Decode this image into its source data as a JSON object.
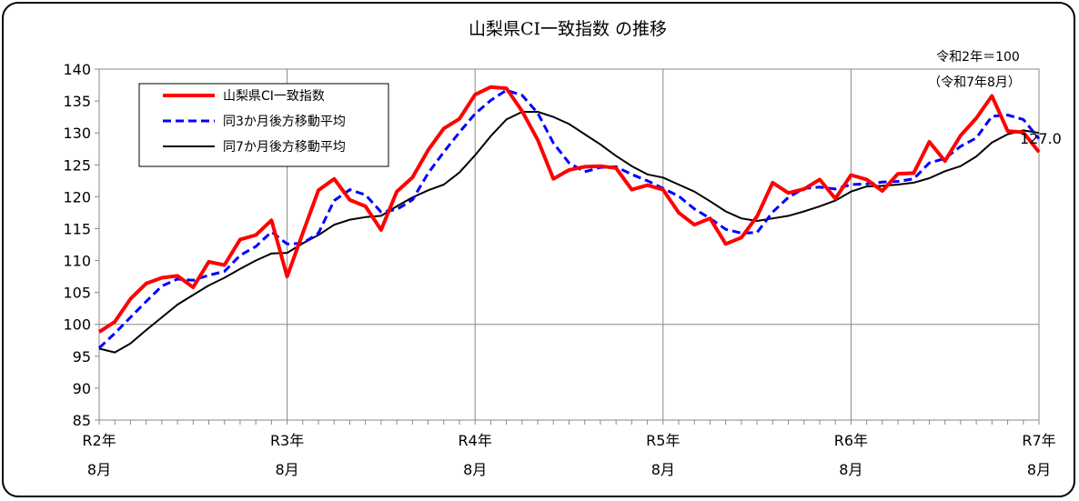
{
  "chart_data": {
    "type": "line",
    "title": "山梨県CI一致指数 の推移",
    "note_line1": "令和2年＝100",
    "note_line2": "（令和7年8月）",
    "last_value_label": "127.0",
    "ylim": [
      85,
      140
    ],
    "yticks": [
      "85",
      "90",
      "95",
      "100",
      "105",
      "110",
      "115",
      "120",
      "125",
      "130",
      "135",
      "140"
    ],
    "x_tick_labels": [
      {
        "line1": "R2年",
        "line2": "8月",
        "month_index": 0
      },
      {
        "line1": "R3年",
        "line2": "8月",
        "month_index": 12
      },
      {
        "line1": "R4年",
        "line2": "8月",
        "month_index": 24
      },
      {
        "line1": "R5年",
        "line2": "8月",
        "month_index": 36
      },
      {
        "line1": "R6年",
        "line2": "8月",
        "month_index": 48
      },
      {
        "line1": "R7年",
        "line2": "8月",
        "month_index": 60
      }
    ],
    "legend": [
      "山梨県CI一致指数",
      "同3か月後方移動平均",
      "同7か月後方移動平均"
    ],
    "series": [
      {
        "name": "山梨県CI一致指数",
        "color": "#ff0000",
        "style": "solid",
        "values": [
          98.8,
          100.4,
          104.0,
          106.4,
          107.3,
          107.6,
          105.8,
          109.8,
          109.3,
          113.3,
          114.0,
          116.3,
          107.5,
          114.3,
          121.0,
          122.8,
          119.5,
          118.5,
          114.8,
          120.8,
          123.0,
          127.3,
          130.7,
          132.2,
          136.0,
          137.2,
          137.0,
          133.4,
          128.9,
          122.8,
          124.2,
          124.7,
          124.8,
          124.5,
          121.1,
          121.8,
          121.1,
          117.5,
          115.6,
          116.6,
          112.6,
          113.6,
          116.9,
          122.2,
          120.6,
          121.2,
          122.7,
          119.7,
          123.4,
          122.7,
          120.9,
          123.6,
          123.7,
          128.6,
          125.6,
          129.6,
          132.3,
          135.8,
          130.3,
          130.1,
          127.0
        ]
      },
      {
        "name": "同3か月後方移動平均",
        "color": "#0000ff",
        "style": "dashed",
        "values": [
          96.3,
          98.6,
          101.1,
          103.6,
          106.0,
          107.1,
          106.9,
          107.7,
          108.3,
          110.8,
          112.2,
          114.5,
          112.6,
          112.7,
          114.3,
          119.4,
          121.1,
          120.3,
          117.6,
          118.0,
          119.5,
          123.7,
          127.0,
          130.1,
          133.0,
          135.1,
          136.7,
          135.9,
          133.1,
          128.4,
          125.3,
          123.9,
          124.6,
          124.7,
          123.5,
          122.5,
          121.3,
          120.1,
          118.1,
          116.6,
          114.9,
          114.3,
          114.4,
          117.6,
          119.9,
          121.3,
          121.5,
          121.2,
          121.9,
          122.0,
          122.3,
          122.4,
          122.8,
          125.3,
          126.0,
          127.9,
          129.2,
          132.6,
          132.8,
          132.1,
          129.1
        ]
      },
      {
        "name": "同7か月後方移動平均",
        "color": "#000000",
        "style": "solid",
        "values": [
          96.2,
          95.6,
          97.0,
          99.1,
          101.1,
          103.1,
          104.6,
          106.1,
          107.3,
          108.7,
          110.0,
          111.1,
          111.2,
          112.7,
          114.0,
          115.6,
          116.4,
          116.8,
          117.0,
          118.5,
          119.9,
          121.0,
          121.9,
          123.8,
          126.5,
          129.5,
          132.1,
          133.3,
          133.3,
          132.5,
          131.4,
          129.8,
          128.2,
          126.4,
          124.8,
          123.5,
          123.0,
          121.9,
          120.8,
          119.3,
          117.7,
          116.6,
          116.2,
          116.6,
          117.0,
          117.7,
          118.5,
          119.4,
          120.8,
          121.6,
          121.7,
          121.9,
          122.2,
          122.9,
          124.0,
          124.8,
          126.3,
          128.5,
          129.8,
          130.4,
          130.0
        ]
      }
    ]
  }
}
